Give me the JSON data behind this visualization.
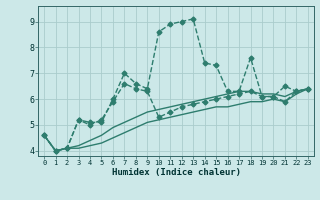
{
  "xlabel": "Humidex (Indice chaleur)",
  "ylabel": "",
  "xlim": [
    -0.5,
    23.5
  ],
  "ylim": [
    3.8,
    9.6
  ],
  "xticks": [
    0,
    1,
    2,
    3,
    4,
    5,
    6,
    7,
    8,
    9,
    10,
    11,
    12,
    13,
    14,
    15,
    16,
    17,
    18,
    19,
    20,
    21,
    22,
    23
  ],
  "yticks": [
    4,
    5,
    6,
    7,
    8,
    9
  ],
  "bg_color": "#cce8e8",
  "grid_color": "#aacccc",
  "line_color": "#2e7d6e",
  "lines": [
    {
      "x": [
        0,
        1,
        2,
        3,
        4,
        5,
        6,
        7,
        8,
        9,
        10,
        11,
        12,
        13,
        14,
        15,
        16,
        17,
        18,
        19,
        20,
        21,
        22,
        23
      ],
      "y": [
        4.6,
        4.0,
        4.1,
        5.2,
        5.1,
        5.1,
        6.0,
        7.0,
        6.6,
        6.4,
        8.6,
        8.9,
        9.0,
        9.1,
        7.4,
        7.3,
        6.3,
        6.3,
        7.6,
        6.1,
        6.1,
        6.5,
        6.3,
        6.4
      ],
      "marker": "D",
      "markersize": 2.5,
      "linewidth": 1.0,
      "linestyle": "--"
    },
    {
      "x": [
        0,
        1,
        2,
        3,
        4,
        5,
        6,
        7,
        8,
        9,
        10,
        11,
        12,
        13,
        14,
        15,
        16,
        17,
        18,
        19,
        20,
        21,
        22,
        23
      ],
      "y": [
        4.6,
        4.0,
        4.1,
        5.2,
        5.0,
        5.2,
        5.9,
        6.6,
        6.4,
        6.3,
        5.3,
        5.5,
        5.7,
        5.8,
        5.9,
        6.0,
        6.1,
        6.2,
        6.3,
        6.1,
        6.1,
        5.9,
        6.3,
        6.4
      ],
      "marker": "D",
      "markersize": 2.5,
      "linewidth": 1.0,
      "linestyle": "--"
    },
    {
      "x": [
        0,
        1,
        2,
        3,
        4,
        5,
        6,
        7,
        8,
        9,
        10,
        11,
        12,
        13,
        14,
        15,
        16,
        17,
        18,
        19,
        20,
        21,
        22,
        23
      ],
      "y": [
        4.6,
        4.0,
        4.1,
        4.2,
        4.4,
        4.6,
        4.9,
        5.1,
        5.3,
        5.5,
        5.6,
        5.7,
        5.8,
        5.9,
        6.0,
        6.1,
        6.2,
        6.3,
        6.3,
        6.2,
        6.2,
        6.1,
        6.3,
        6.4
      ],
      "marker": null,
      "markersize": 0,
      "linewidth": 1.0,
      "linestyle": "-"
    },
    {
      "x": [
        0,
        1,
        2,
        3,
        4,
        5,
        6,
        7,
        8,
        9,
        10,
        11,
        12,
        13,
        14,
        15,
        16,
        17,
        18,
        19,
        20,
        21,
        22,
        23
      ],
      "y": [
        4.6,
        4.0,
        4.1,
        4.1,
        4.2,
        4.3,
        4.5,
        4.7,
        4.9,
        5.1,
        5.2,
        5.3,
        5.4,
        5.5,
        5.6,
        5.7,
        5.7,
        5.8,
        5.9,
        5.9,
        6.0,
        5.9,
        6.2,
        6.4
      ],
      "marker": null,
      "markersize": 0,
      "linewidth": 1.0,
      "linestyle": "-"
    }
  ]
}
